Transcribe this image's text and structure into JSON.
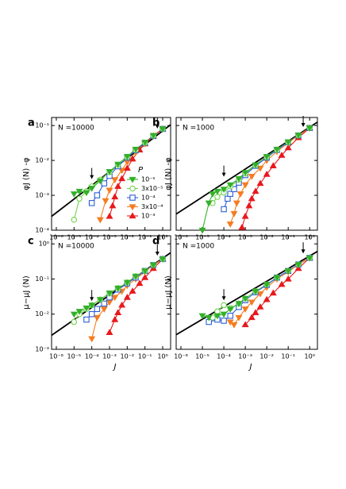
{
  "chart_data": [
    {
      "type": "line",
      "label": "a",
      "annotation": "N =10000",
      "ylabel": "φJ (N) -φ",
      "xscale": "log",
      "yscale": "log",
      "xlim": [
        5.4e-07,
        2.8
      ],
      "ylim": [
        0.0001,
        0.17
      ],
      "xticks": [
        {
          "value": 1e-06,
          "label": "10⁻⁶"
        },
        {
          "value": 1e-05,
          "label": "10⁻⁵"
        },
        {
          "value": 0.0001,
          "label": "10⁻⁴"
        },
        {
          "value": 0.001,
          "label": "10⁻³"
        },
        {
          "value": 0.01,
          "label": "10⁻²"
        },
        {
          "value": 0.1,
          "label": "10⁻¹"
        },
        {
          "value": 1,
          "label": "10⁰"
        }
      ],
      "yticks": [
        {
          "value": 0.0001,
          "label": "10⁻⁴"
        },
        {
          "value": 0.001,
          "label": "10⁻³"
        },
        {
          "value": 0.01,
          "label": "10⁻²"
        },
        {
          "value": 0.1,
          "label": "10⁻¹"
        }
      ],
      "arrows": [
        0.0001,
        0.5
      ],
      "legend": true,
      "legend_title": "P",
      "series": [
        {
          "color": "#000000",
          "marker": "none",
          "x": [
            5.4e-07,
            2.8
          ],
          "values": [
            0.00025,
            0.105
          ]
        },
        {
          "name": "10⁻⁵",
          "color": "#33b02a",
          "marker": "triangle-down",
          "filled": true,
          "x": [
            1e-05,
            2e-05,
            5e-05,
            0.0001,
            0.0003,
            0.001,
            0.003,
            0.01,
            0.03,
            0.1,
            0.3,
            1
          ],
          "values": [
            0.0011,
            0.0013,
            0.0012,
            0.0016,
            0.0026,
            0.0048,
            0.0078,
            0.013,
            0.021,
            0.033,
            0.052,
            0.08
          ]
        },
        {
          "name": "3x10⁻⁵",
          "color": "#72d34e",
          "marker": "circle",
          "filled": false,
          "x": [
            1e-05,
            2e-05,
            5e-05,
            0.0001,
            0.0003,
            0.001,
            0.003,
            0.01,
            0.03,
            0.1,
            0.3,
            1
          ],
          "values": [
            0.0002,
            0.0008,
            0.0013,
            0.0018,
            0.0028,
            0.0046,
            0.0075,
            0.0125,
            0.02,
            0.032,
            0.051,
            0.08
          ]
        },
        {
          "name": "10⁻⁴",
          "color": "#2c5fd6",
          "marker": "square",
          "filled": false,
          "x": [
            0.0001,
            0.0002,
            0.0005,
            0.001,
            0.003,
            0.01,
            0.03,
            0.1,
            0.3,
            1
          ],
          "values": [
            0.0006,
            0.001,
            0.0022,
            0.0036,
            0.0068,
            0.012,
            0.0195,
            0.032,
            0.05,
            0.08
          ]
        },
        {
          "name": "3x10⁻⁴",
          "color": "#f57c20",
          "marker": "triangle-down",
          "filled": true,
          "x": [
            0.0003,
            0.0006,
            0.001,
            0.002,
            0.005,
            0.01,
            0.03,
            0.1,
            0.3,
            1
          ],
          "values": [
            0.0002,
            0.0007,
            0.0014,
            0.0028,
            0.0052,
            0.009,
            0.017,
            0.03,
            0.05,
            0.08
          ]
        },
        {
          "name": "10⁻³",
          "color": "#e8191c",
          "marker": "triangle-up",
          "filled": true,
          "x": [
            0.001,
            0.0015,
            0.002,
            0.003,
            0.005,
            0.01,
            0.02,
            0.05,
            0.1,
            0.3,
            1
          ],
          "values": [
            0.00025,
            0.0005,
            0.0009,
            0.0018,
            0.003,
            0.006,
            0.011,
            0.02,
            0.03,
            0.05,
            0.08
          ]
        }
      ]
    },
    {
      "type": "line",
      "label": "b",
      "annotation": "N =1000",
      "ylabel": "φJ (N) -φ",
      "xscale": "log",
      "yscale": "log",
      "xlim": [
        6e-07,
        2.3
      ],
      "ylim": [
        0.0001,
        0.17
      ],
      "xticks": [
        {
          "value": 1e-06,
          "label": "10⁻⁶"
        },
        {
          "value": 1e-05,
          "label": "10⁻⁵"
        },
        {
          "value": 0.0001,
          "label": "10⁻⁴"
        },
        {
          "value": 0.001,
          "label": "10⁻³"
        },
        {
          "value": 0.01,
          "label": "10⁻²"
        },
        {
          "value": 0.1,
          "label": "10⁻¹"
        },
        {
          "value": 1,
          "label": "10⁰"
        }
      ],
      "yticks": [
        0.0001,
        0.001,
        0.01,
        0.1
      ],
      "ytick_labels": false,
      "arrows": [
        0.0001,
        0.5
      ],
      "series": [
        {
          "color": "#000000",
          "marker": "none",
          "x": [
            6e-07,
            2.3
          ],
          "values": [
            0.00029,
            0.125
          ]
        },
        {
          "color": "#33b02a",
          "marker": "triangle-down",
          "filled": true,
          "x": [
            1e-05,
            2e-05,
            3e-05,
            5e-05,
            0.0001,
            0.0002,
            0.0005,
            0.001,
            0.003,
            0.01,
            0.03,
            0.1,
            0.3,
            1
          ],
          "values": [
            0.0001,
            0.0006,
            0.0011,
            0.0013,
            0.0015,
            0.002,
            0.003,
            0.0045,
            0.0075,
            0.013,
            0.021,
            0.034,
            0.053,
            0.085
          ]
        },
        {
          "color": "#72d34e",
          "marker": "circle",
          "filled": false,
          "x": [
            3e-05,
            5e-05,
            0.0001,
            0.0002,
            0.0005,
            0.001,
            0.003,
            0.01,
            0.03,
            0.1,
            0.3,
            1
          ],
          "values": [
            0.0006,
            0.0009,
            0.0012,
            0.0018,
            0.0028,
            0.0042,
            0.0072,
            0.0125,
            0.02,
            0.033,
            0.052,
            0.085
          ]
        },
        {
          "color": "#2c5fd6",
          "marker": "square",
          "filled": false,
          "x": [
            0.0001,
            0.00015,
            0.0002,
            0.0003,
            0.0005,
            0.001,
            0.003,
            0.01,
            0.03,
            0.1,
            0.3,
            1
          ],
          "values": [
            0.0004,
            0.0008,
            0.0011,
            0.0015,
            0.0023,
            0.0038,
            0.007,
            0.012,
            0.02,
            0.033,
            0.052,
            0.085
          ]
        },
        {
          "color": "#f57c20",
          "marker": "triangle-down",
          "filled": true,
          "x": [
            0.0002,
            0.0003,
            0.0004,
            0.0006,
            0.001,
            0.002,
            0.005,
            0.01,
            0.03,
            0.1,
            0.3,
            1
          ],
          "values": [
            0.00015,
            0.0003,
            0.0006,
            0.0011,
            0.002,
            0.0035,
            0.006,
            0.01,
            0.018,
            0.032,
            0.052,
            0.085
          ]
        },
        {
          "color": "#e8191c",
          "marker": "triangle-up",
          "filled": true,
          "x": [
            0.0007,
            0.001,
            0.0015,
            0.002,
            0.003,
            0.005,
            0.01,
            0.02,
            0.05,
            0.1,
            0.3,
            1
          ],
          "values": [
            0.00012,
            0.00025,
            0.0005,
            0.0008,
            0.0013,
            0.0022,
            0.004,
            0.007,
            0.014,
            0.023,
            0.045,
            0.085
          ]
        }
      ]
    },
    {
      "type": "line",
      "label": "c",
      "annotation": "N =10000",
      "ylabel": "μ−μJ (N)",
      "xlabel": "J",
      "xscale": "log",
      "yscale": "log",
      "xlim": [
        5.4e-07,
        2.8
      ],
      "ylim": [
        0.001,
        1.7
      ],
      "xticks": [
        {
          "value": 1e-06,
          "label": "10⁻⁶"
        },
        {
          "value": 1e-05,
          "label": "10⁻⁵"
        },
        {
          "value": 0.0001,
          "label": "10⁻⁴"
        },
        {
          "value": 0.001,
          "label": "10⁻³"
        },
        {
          "value": 0.01,
          "label": "10⁻²"
        },
        {
          "value": 0.1,
          "label": "10⁻¹"
        },
        {
          "value": 1,
          "label": "10⁰"
        }
      ],
      "yticks": [
        {
          "value": 0.001,
          "label": "10⁻³"
        },
        {
          "value": 0.01,
          "label": "10⁻²"
        },
        {
          "value": 0.1,
          "label": "10⁻¹"
        },
        {
          "value": 1,
          "label": "10⁰"
        }
      ],
      "arrows": [
        0.0001,
        0.5
      ],
      "series": [
        {
          "color": "#000000",
          "marker": "none",
          "x": [
            5.4e-07,
            2.8
          ],
          "values": [
            0.0025,
            0.56
          ]
        },
        {
          "color": "#33b02a",
          "marker": "triangle-down",
          "filled": true,
          "x": [
            1e-05,
            2e-05,
            5e-05,
            0.0001,
            0.0003,
            0.001,
            0.003,
            0.01,
            0.03,
            0.1,
            0.3,
            1
          ],
          "values": [
            0.01,
            0.012,
            0.015,
            0.018,
            0.026,
            0.04,
            0.055,
            0.08,
            0.12,
            0.17,
            0.25,
            0.37
          ]
        },
        {
          "color": "#72d34e",
          "marker": "circle",
          "filled": false,
          "x": [
            1e-05,
            2e-05,
            5e-05,
            0.0001,
            0.0003,
            0.001,
            0.003,
            0.01,
            0.03,
            0.1,
            0.3,
            1
          ],
          "values": [
            0.006,
            0.01,
            0.014,
            0.018,
            0.026,
            0.039,
            0.055,
            0.08,
            0.12,
            0.17,
            0.25,
            0.37
          ]
        },
        {
          "color": "#2c5fd6",
          "marker": "square",
          "filled": false,
          "x": [
            5e-05,
            0.0001,
            0.0002,
            0.0005,
            0.001,
            0.003,
            0.01,
            0.03,
            0.1,
            0.3,
            1
          ],
          "values": [
            0.007,
            0.01,
            0.014,
            0.02,
            0.03,
            0.05,
            0.075,
            0.11,
            0.17,
            0.25,
            0.37
          ]
        },
        {
          "color": "#f57c20",
          "marker": "triangle-down",
          "filled": true,
          "x": [
            0.0001,
            0.0002,
            0.0005,
            0.001,
            0.002,
            0.005,
            0.01,
            0.03,
            0.1,
            0.3,
            1
          ],
          "values": [
            0.002,
            0.008,
            0.014,
            0.022,
            0.03,
            0.045,
            0.065,
            0.1,
            0.16,
            0.25,
            0.37
          ]
        },
        {
          "color": "#e8191c",
          "marker": "triangle-up",
          "filled": true,
          "x": [
            0.001,
            0.002,
            0.003,
            0.005,
            0.01,
            0.02,
            0.05,
            0.1,
            0.3,
            1
          ],
          "values": [
            0.003,
            0.007,
            0.011,
            0.018,
            0.03,
            0.045,
            0.075,
            0.11,
            0.2,
            0.37
          ]
        }
      ]
    },
    {
      "type": "line",
      "label": "d",
      "annotation": "N =1000",
      "ylabel": "μ−μJ (N)",
      "xlabel": "J",
      "xscale": "log",
      "yscale": "log",
      "xlim": [
        6e-07,
        2.3
      ],
      "ylim": [
        0.001,
        1.7
      ],
      "xticks": [
        {
          "value": 1e-06,
          "label": "10⁻⁶"
        },
        {
          "value": 1e-05,
          "label": "10⁻⁵"
        },
        {
          "value": 0.0001,
          "label": "10⁻⁴"
        },
        {
          "value": 0.001,
          "label": "10⁻³"
        },
        {
          "value": 0.01,
          "label": "10⁻²"
        },
        {
          "value": 0.1,
          "label": "10⁻¹"
        },
        {
          "value": 1,
          "label": "10⁰"
        }
      ],
      "yticks": [
        0.001,
        0.01,
        0.1,
        1
      ],
      "ytick_labels": false,
      "arrows": [
        0.0001,
        0.5
      ],
      "series": [
        {
          "color": "#000000",
          "marker": "none",
          "x": [
            6e-07,
            2.3
          ],
          "values": [
            0.0026,
            0.61
          ]
        },
        {
          "color": "#33b02a",
          "marker": "triangle-down",
          "filled": true,
          "x": [
            1e-05,
            2e-05,
            5e-05,
            0.0001,
            0.0002,
            0.0005,
            0.001,
            0.003,
            0.01,
            0.03,
            0.1,
            0.3,
            1
          ],
          "values": [
            0.009,
            0.008,
            0.009,
            0.01,
            0.014,
            0.02,
            0.028,
            0.045,
            0.07,
            0.11,
            0.17,
            0.26,
            0.4
          ]
        },
        {
          "color": "#72d34e",
          "marker": "circle",
          "filled": false,
          "x": [
            3e-05,
            5e-05,
            0.0001,
            0.0002,
            0.0005,
            0.001,
            0.003,
            0.01,
            0.03,
            0.1,
            0.3,
            1
          ],
          "values": [
            0.008,
            0.012,
            0.018,
            0.015,
            0.02,
            0.028,
            0.045,
            0.07,
            0.11,
            0.17,
            0.26,
            0.4
          ]
        },
        {
          "color": "#2c5fd6",
          "marker": "square",
          "filled": false,
          "x": [
            2e-05,
            5e-05,
            0.0001,
            0.0002,
            0.0005,
            0.001,
            0.003,
            0.01,
            0.03,
            0.1,
            0.3,
            1
          ],
          "values": [
            0.006,
            0.007,
            0.0065,
            0.009,
            0.016,
            0.025,
            0.042,
            0.068,
            0.11,
            0.17,
            0.26,
            0.4
          ]
        },
        {
          "color": "#f57c20",
          "marker": "triangle-down",
          "filled": true,
          "x": [
            0.0002,
            0.0003,
            0.0005,
            0.001,
            0.002,
            0.005,
            0.01,
            0.03,
            0.1,
            0.3,
            1
          ],
          "values": [
            0.006,
            0.005,
            0.008,
            0.014,
            0.022,
            0.038,
            0.058,
            0.1,
            0.16,
            0.26,
            0.4
          ]
        },
        {
          "color": "#e8191c",
          "marker": "triangle-up",
          "filled": true,
          "x": [
            0.001,
            0.002,
            0.003,
            0.005,
            0.01,
            0.02,
            0.05,
            0.1,
            0.3,
            1
          ],
          "values": [
            0.005,
            0.008,
            0.011,
            0.016,
            0.026,
            0.04,
            0.07,
            0.1,
            0.2,
            0.4
          ]
        }
      ]
    }
  ]
}
